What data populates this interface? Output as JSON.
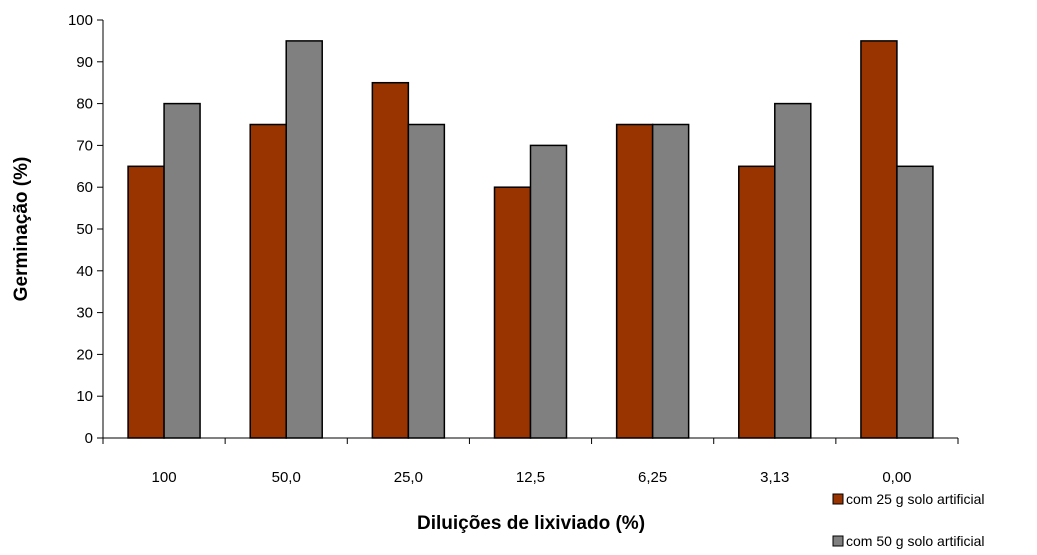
{
  "chart_data": {
    "type": "bar",
    "categories": [
      "100",
      "50,0",
      "25,0",
      "12,5",
      "6,25",
      "3,13",
      "0,00"
    ],
    "series": [
      {
        "name": "com 25 g solo artificial",
        "values": [
          65,
          75,
          85,
          60,
          75,
          65,
          95
        ],
        "color": "#993300"
      },
      {
        "name": "com 50 g solo artificial",
        "values": [
          80,
          95,
          75,
          70,
          75,
          80,
          65
        ],
        "color": "#808080"
      }
    ],
    "title": "",
    "xlabel": "Diluições de lixiviado (%)",
    "ylabel": "Germinação (%)",
    "ylim": [
      0,
      100
    ],
    "yticks": [
      "0",
      "10",
      "20",
      "30",
      "40",
      "50",
      "60",
      "70",
      "80",
      "90",
      "100"
    ],
    "grid": false,
    "legend_position": "bottom-right"
  }
}
